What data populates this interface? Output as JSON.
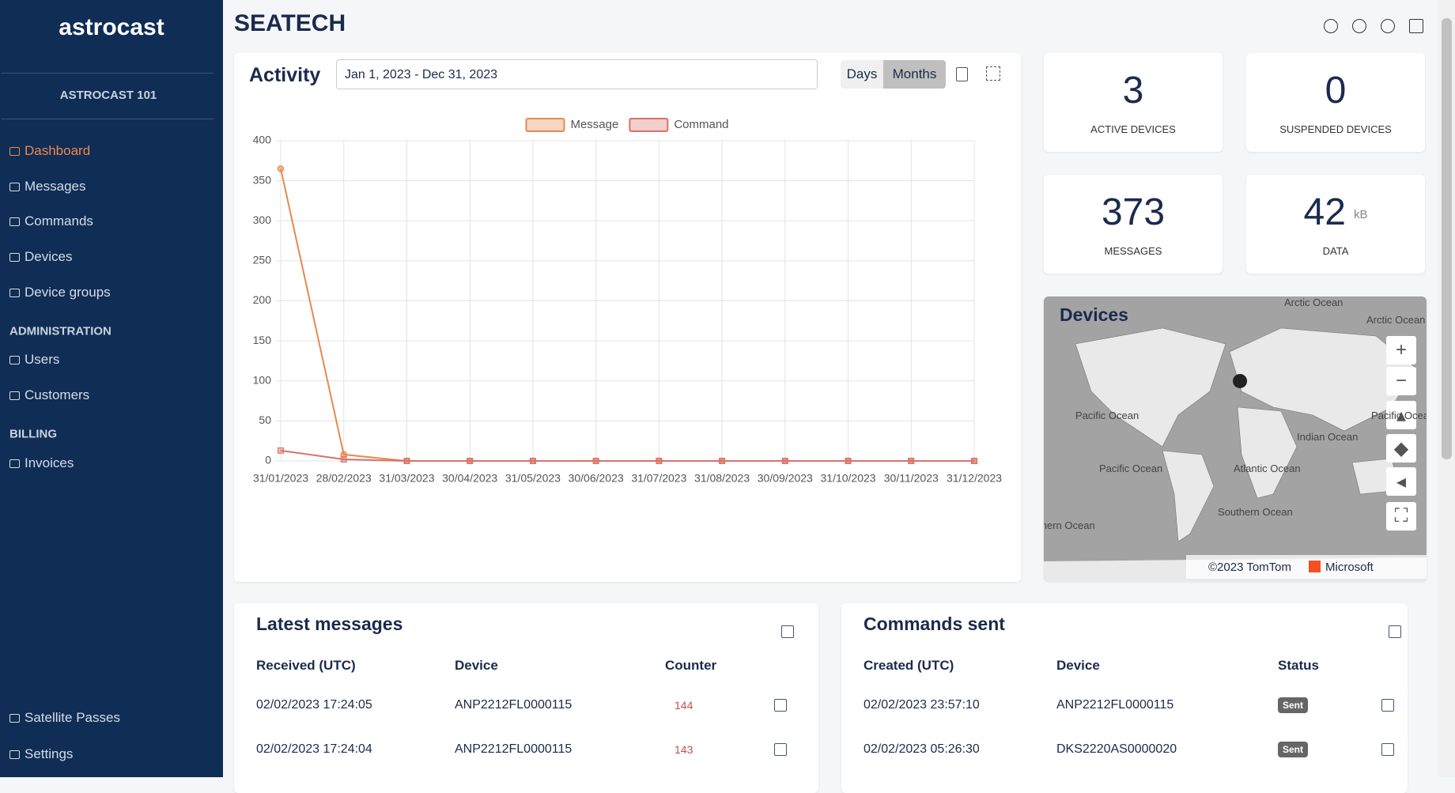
{
  "sidebar": {
    "logo": "astrocast",
    "account": "ASTROCAST 101",
    "nav": [
      "Dashboard",
      "Messages",
      "Commands",
      "Devices",
      "Device groups"
    ],
    "administration": {
      "heading": "ADMINISTRATION",
      "items": [
        "Users",
        "Customers"
      ]
    },
    "billing": {
      "heading": "BILLING",
      "items": [
        "Invoices"
      ]
    },
    "footer": [
      "Satellite Passes",
      "Settings"
    ]
  },
  "header": {
    "title": "SEATECH"
  },
  "activity": {
    "title": "Activity",
    "date_range": "Jan 1, 2023 - Dec 31, 2023",
    "buttons": [
      "Days",
      "Months"
    ]
  },
  "chart_data": {
    "type": "line",
    "categories": [
      "31/01/2023",
      "28/02/2023",
      "31/03/2023",
      "30/04/2023",
      "31/05/2023",
      "30/06/2023",
      "31/07/2023",
      "31/08/2023",
      "30/09/2023",
      "31/10/2023",
      "30/11/2023",
      "31/12/2023"
    ],
    "series": [
      {
        "name": "Message",
        "color": "#e8894f",
        "marker": "circle",
        "values": [
          365,
          8,
          0,
          0,
          0,
          0,
          0,
          0,
          0,
          0,
          0,
          0
        ]
      },
      {
        "name": "Command",
        "color": "#d9726c",
        "marker": "square",
        "values": [
          13,
          2,
          0,
          0,
          0,
          0,
          0,
          0,
          0,
          0,
          0,
          0
        ]
      }
    ],
    "ylim": [
      0,
      400
    ],
    "yticks": [
      0,
      50,
      100,
      150,
      200,
      250,
      300,
      350,
      400
    ],
    "grid": true,
    "legend": "top"
  },
  "stats": [
    {
      "value": 3,
      "label": "ACTIVE DEVICES"
    },
    {
      "value": 0,
      "label": "SUSPENDED DEVICES"
    },
    {
      "value": 373,
      "label": "MESSAGES"
    },
    {
      "value": 42,
      "unit": "kB",
      "label": "DATA"
    }
  ],
  "map": {
    "title": "Devices",
    "labels": [
      "Arctic Ocean",
      "Arctic Ocean",
      "Pacific Ocean",
      "Pacific Ocean",
      "Atlantic Ocean",
      "Indian Ocean",
      "Pacific Ocean",
      "Southern Ocean",
      "Southern Ocean"
    ],
    "attribution": "©2023 TomTom",
    "provider": "Microsoft"
  },
  "latest_messages": {
    "title": "Latest messages",
    "columns": [
      "Received (UTC)",
      "Device",
      "Counter"
    ],
    "rows": [
      [
        "02/02/2023 17:24:05",
        "ANP2212FL0000115",
        144
      ],
      [
        "02/02/2023 17:24:04",
        "ANP2212FL0000115",
        143
      ]
    ]
  },
  "commands_sent": {
    "title": "Commands sent",
    "columns": [
      "Created (UTC)",
      "Device",
      "Status"
    ],
    "rows": [
      [
        "02/02/2023 23:57:10",
        "ANP2212FL0000115",
        "Sent"
      ],
      [
        "02/02/2023 05:26:30",
        "DKS2220AS0000020",
        "Sent"
      ]
    ]
  }
}
